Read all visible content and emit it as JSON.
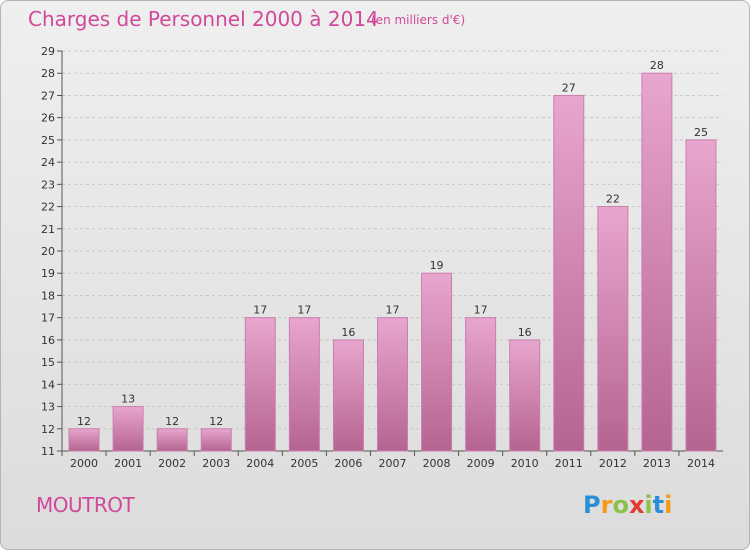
{
  "header": {
    "title": "Charges de Personnel 2000 à 2014",
    "subtitle": "(en milliers d'€)"
  },
  "footer": {
    "place": "MOUTROT",
    "logo_letters": [
      "P",
      "r",
      "o",
      "x",
      "i",
      "t",
      "i"
    ]
  },
  "colors": {
    "title": "#d0499a",
    "bar_light": "#e8a6cf",
    "bar_dark": "#b5648f",
    "bar_stroke": "#c97fab"
  },
  "chart_data": {
    "type": "bar",
    "title": "Charges de Personnel 2000 à 2014",
    "subtitle": "(en milliers d'€)",
    "xlabel": "",
    "ylabel": "",
    "categories": [
      "2000",
      "2001",
      "2002",
      "2003",
      "2004",
      "2005",
      "2006",
      "2007",
      "2008",
      "2009",
      "2010",
      "2011",
      "2012",
      "2013",
      "2014"
    ],
    "values": [
      12,
      13,
      12,
      12,
      17,
      17,
      16,
      17,
      19,
      17,
      16,
      27,
      22,
      28,
      25
    ],
    "ylim": [
      11,
      29
    ],
    "yticks": [
      11,
      12,
      13,
      14,
      15,
      16,
      17,
      18,
      19,
      20,
      21,
      22,
      23,
      24,
      25,
      26,
      27,
      28,
      29
    ],
    "grid": true
  }
}
